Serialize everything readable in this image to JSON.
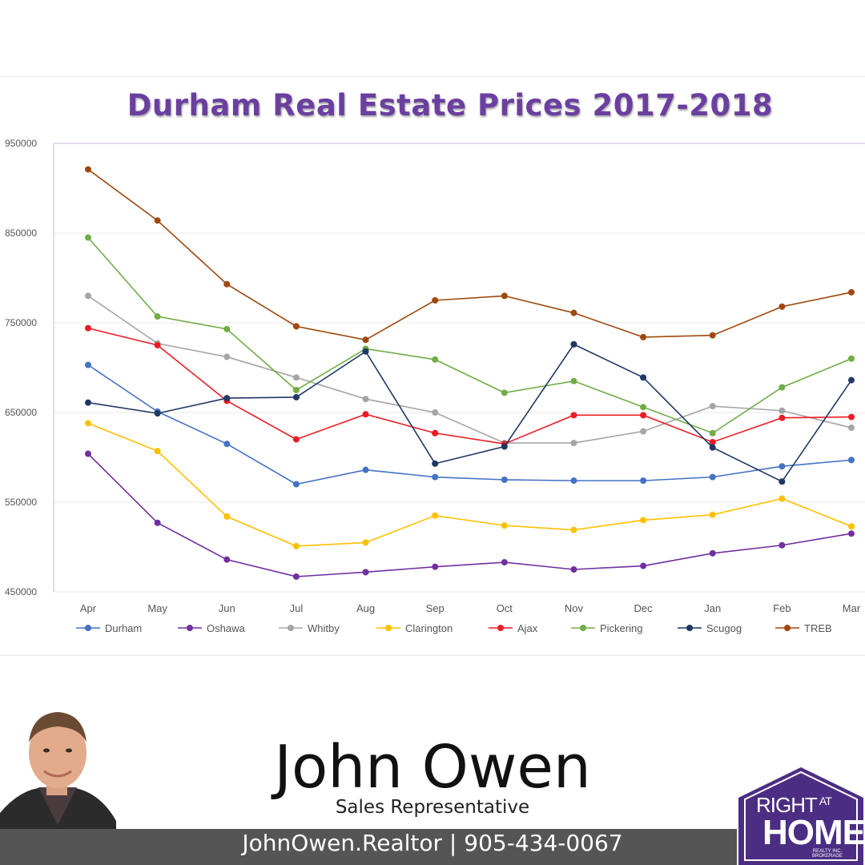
{
  "chart_data": {
    "type": "line",
    "title": "Durham Real Estate Prices 2017-2018",
    "categories": [
      "Apr",
      "May",
      "Jun",
      "Jul",
      "Aug",
      "Sep",
      "Oct",
      "Nov",
      "Dec",
      "Jan",
      "Feb",
      "Mar"
    ],
    "ylim": [
      450000,
      950000
    ],
    "yticks": [
      "950000",
      "850000",
      "750000",
      "650000",
      "550000",
      "450000"
    ],
    "grid": true,
    "legend_position": "bottom",
    "series": [
      {
        "name": "Durham",
        "color": "#4472c4",
        "values": [
          703000,
          651000,
          615000,
          570000,
          586000,
          578000,
          575000,
          574000,
          574000,
          578000,
          590000,
          597000
        ]
      },
      {
        "name": "Oshawa",
        "color": "#7030a0",
        "values": [
          604000,
          527000,
          486000,
          467000,
          472000,
          478000,
          483000,
          475000,
          479000,
          493000,
          502000,
          515000
        ]
      },
      {
        "name": "Whitby",
        "color": "#a5a5a5",
        "values": [
          780000,
          727000,
          712000,
          689000,
          665000,
          650000,
          616000,
          616000,
          629000,
          657000,
          652000,
          633000
        ]
      },
      {
        "name": "Clarington",
        "color": "#ffc000",
        "values": [
          638000,
          607000,
          534000,
          501000,
          505000,
          535000,
          524000,
          519000,
          530000,
          536000,
          554000,
          523000
        ]
      },
      {
        "name": "Ajax",
        "color": "#ed1c24",
        "values": [
          744000,
          725000,
          663000,
          620000,
          648000,
          627000,
          615000,
          647000,
          647000,
          617000,
          644000,
          645000
        ]
      },
      {
        "name": "Pickering",
        "color": "#70ad47",
        "values": [
          845000,
          757000,
          743000,
          675000,
          721000,
          709000,
          672000,
          685000,
          656000,
          627000,
          678000,
          710000
        ]
      },
      {
        "name": "Scugog",
        "color": "#1f3864",
        "values": [
          661000,
          649000,
          666000,
          667000,
          718000,
          593000,
          612000,
          726000,
          689000,
          611000,
          573000,
          686000
        ]
      },
      {
        "name": "TREB",
        "color": "#9e480e",
        "values": [
          921000,
          864000,
          793000,
          746000,
          731000,
          775000,
          780000,
          761000,
          734000,
          736000,
          768000,
          784000
        ]
      }
    ]
  },
  "agent": {
    "name": "John Owen",
    "role": "Sales Representative",
    "contact": "JohnOwen.Realtor | 905-434-0067"
  },
  "logo": {
    "line1": "RIGHT",
    "line1_small": "AT",
    "line2": "HOME",
    "line3a": "REALTY INC.",
    "line3b": "BROKERAGE",
    "color": "#4b2e83"
  }
}
